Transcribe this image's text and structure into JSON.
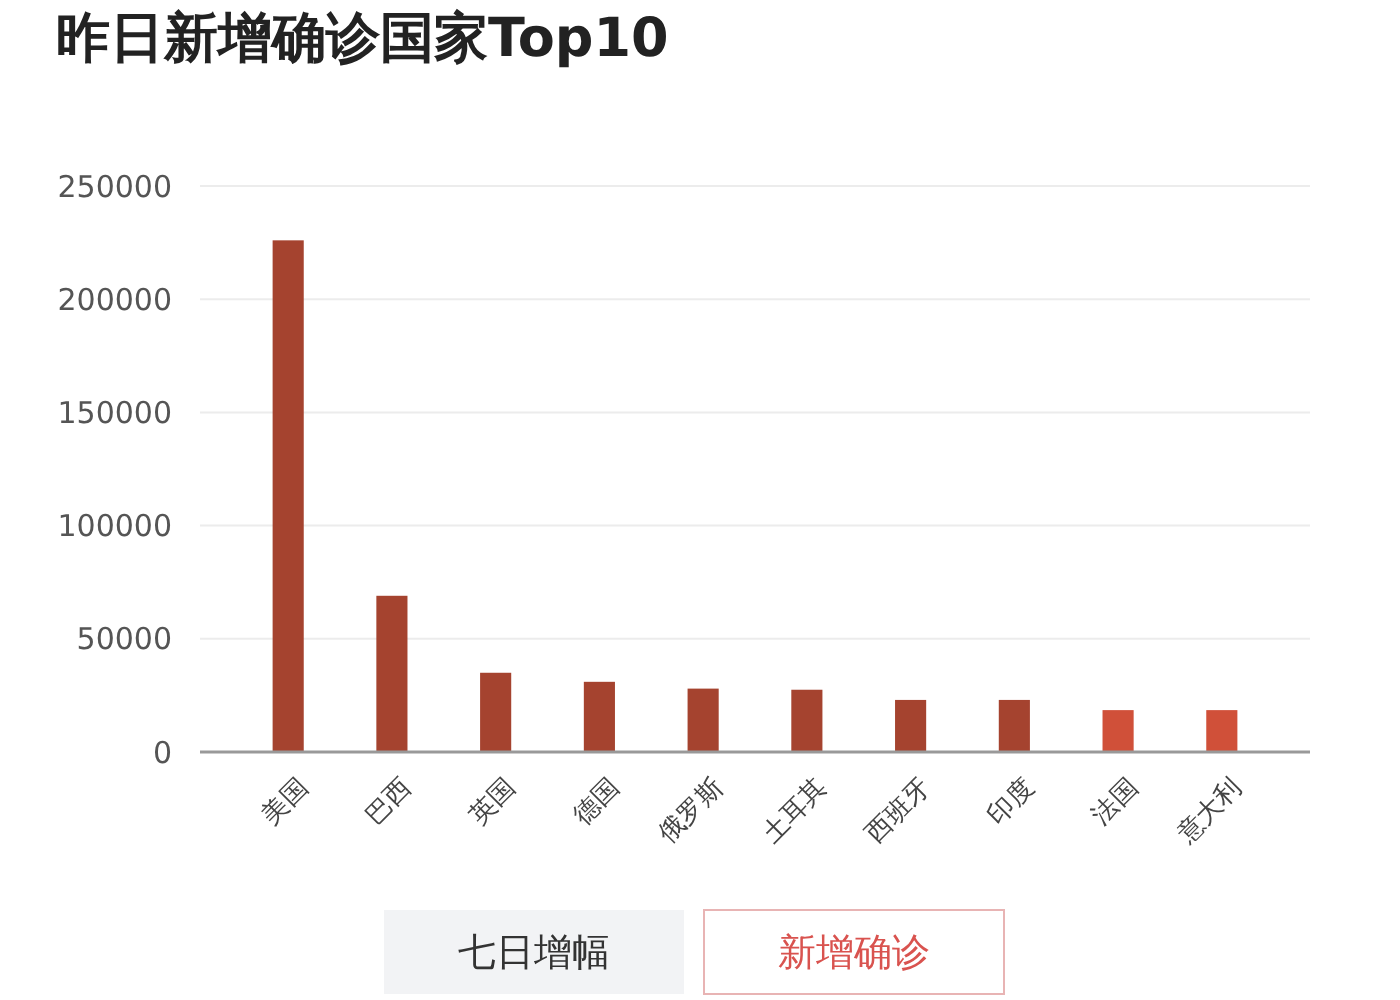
{
  "chart_data": {
    "type": "bar",
    "title": "昨日新增确诊国家Top10",
    "categories": [
      "美国",
      "巴西",
      "英国",
      "德国",
      "俄罗斯",
      "土耳其",
      "西班牙",
      "印度",
      "法国",
      "意大利"
    ],
    "values": [
      226000,
      69000,
      35000,
      31000,
      28000,
      27500,
      23000,
      23000,
      18500,
      18500
    ],
    "colors": [
      "#a5432f",
      "#a5432f",
      "#a5432f",
      "#a5432f",
      "#a5432f",
      "#a5432f",
      "#a5432f",
      "#a5432f",
      "#d05039",
      "#d05039"
    ],
    "ylim": [
      0,
      250000
    ],
    "yticks": [
      0,
      50000,
      100000,
      150000,
      200000,
      250000
    ],
    "grid": "y",
    "annotations": [
      "七日增幅",
      "新增确诊"
    ]
  }
}
